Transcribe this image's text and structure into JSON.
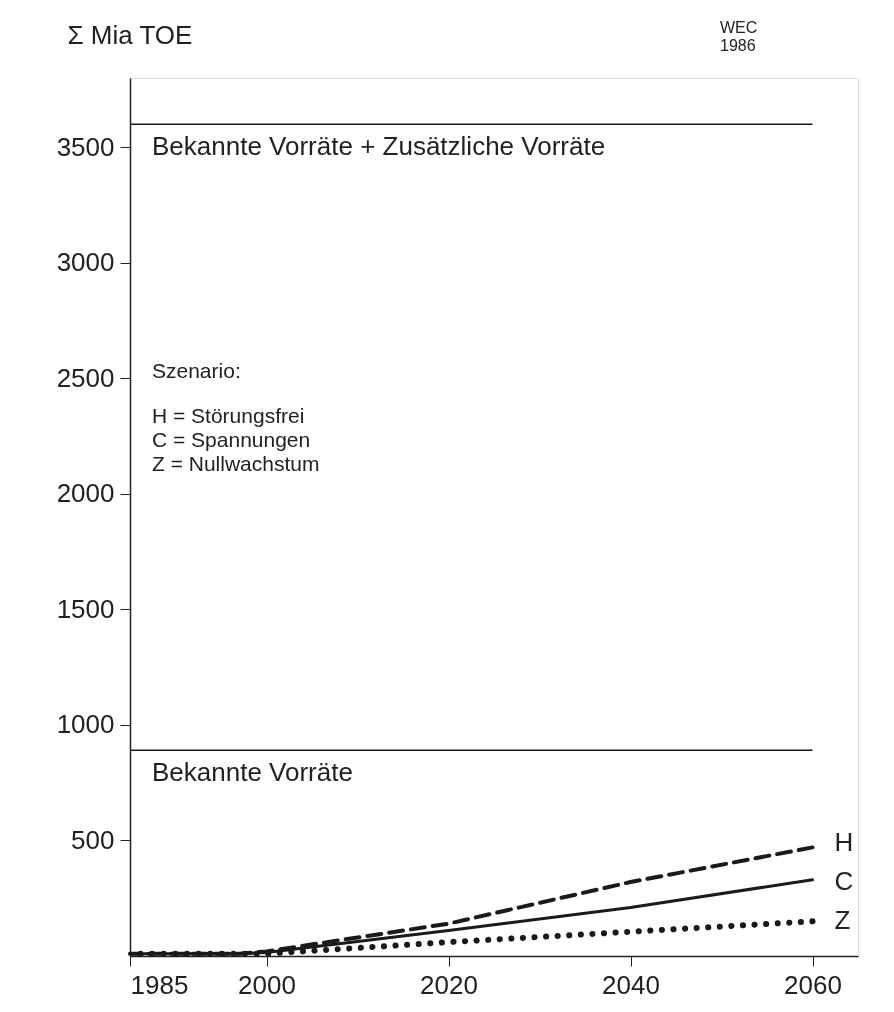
{
  "chart_data": {
    "type": "line",
    "ylabel": "Σ Mia  TOE",
    "x": [
      1985,
      1997,
      2000,
      2020,
      2040,
      2060
    ],
    "series": [
      {
        "name": "H",
        "color": "#1a1a1a",
        "line_style": "dashed",
        "values": [
          10,
          10,
          20,
          140,
          320,
          470
        ]
      },
      {
        "name": "C",
        "color": "#1a1a1a",
        "line_style": "solid",
        "values": [
          10,
          10,
          15,
          110,
          210,
          330
        ]
      },
      {
        "name": "Z",
        "color": "#1a1a1a",
        "line_style": "dotted",
        "values": [
          10,
          10,
          10,
          60,
          105,
          150
        ]
      }
    ],
    "xlim": [
      1985,
      2065
    ],
    "xticks": [
      1985,
      2000,
      2020,
      2040,
      2060
    ],
    "ylim": [
      0,
      3800
    ],
    "yticks": [
      500,
      1000,
      1500,
      2000,
      2500,
      3000,
      3500
    ],
    "ref_lines": [
      {
        "axis": "y",
        "value": 3600,
        "label": "Bekannte Vorräte + Zusätzliche Vorräte",
        "color": "#1a1a1a"
      },
      {
        "axis": "y",
        "value": 890,
        "label": "Bekannte Vorräte",
        "color": "#1a1a1a"
      }
    ],
    "annotations": [
      "WEC\n1986",
      "Szenario:",
      "H = Störungsfrei\nC = Spannungen\nZ = Nullwachstum"
    ],
    "grid": false,
    "marker": "none"
  }
}
